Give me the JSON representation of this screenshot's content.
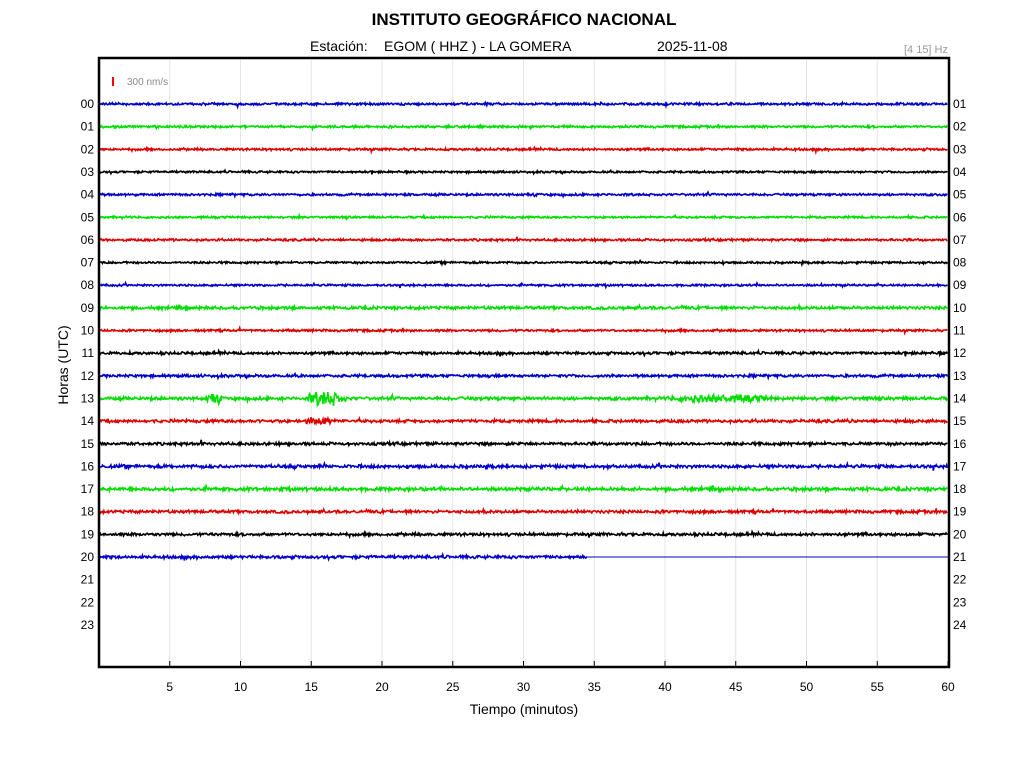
{
  "header": {
    "title": "INSTITUTO GEOGRÁFICO NACIONAL",
    "station_prefix": "Estación:",
    "station": "EGOM ( HHZ ) - LA GOMERA",
    "date": "2025-11-08",
    "filter": "[4 15] Hz"
  },
  "chart_data": {
    "type": "line",
    "xlabel": "Tiempo (minutos)",
    "ylabel": "Horas (UTC)",
    "xlim": [
      0,
      60
    ],
    "x_ticks": [
      5,
      10,
      15,
      20,
      25,
      30,
      35,
      40,
      45,
      50,
      55,
      60
    ],
    "scale_bar": {
      "label": "300 nm/s",
      "color": "#ff0000"
    },
    "left_labels": [
      "00",
      "01",
      "02",
      "03",
      "04",
      "05",
      "06",
      "07",
      "08",
      "09",
      "10",
      "11",
      "12",
      "13",
      "14",
      "15",
      "16",
      "17",
      "18",
      "19",
      "20",
      "21",
      "22",
      "23"
    ],
    "right_labels": [
      "01",
      "02",
      "03",
      "04",
      "05",
      "06",
      "07",
      "08",
      "09",
      "10",
      "11",
      "12",
      "13",
      "14",
      "15",
      "16",
      "17",
      "18",
      "19",
      "20",
      "21",
      "22",
      "23",
      "24"
    ],
    "colors": [
      "#0000cc",
      "#00dd00",
      "#dd0000",
      "#000000"
    ],
    "traces": [
      {
        "hour": "00",
        "color": "#0000cc",
        "end_min": 60,
        "amp": 1.0
      },
      {
        "hour": "01",
        "color": "#00dd00",
        "end_min": 60,
        "amp": 1.0
      },
      {
        "hour": "02",
        "color": "#dd0000",
        "end_min": 60,
        "amp": 1.0
      },
      {
        "hour": "03",
        "color": "#000000",
        "end_min": 60,
        "amp": 0.9
      },
      {
        "hour": "04",
        "color": "#0000cc",
        "end_min": 60,
        "amp": 1.0
      },
      {
        "hour": "05",
        "color": "#00dd00",
        "end_min": 60,
        "amp": 0.9
      },
      {
        "hour": "06",
        "color": "#dd0000",
        "end_min": 60,
        "amp": 1.0
      },
      {
        "hour": "07",
        "color": "#000000",
        "end_min": 60,
        "amp": 0.9
      },
      {
        "hour": "08",
        "color": "#0000cc",
        "end_min": 60,
        "amp": 0.9
      },
      {
        "hour": "09",
        "color": "#00dd00",
        "end_min": 60,
        "amp": 1.3
      },
      {
        "hour": "10",
        "color": "#dd0000",
        "end_min": 60,
        "amp": 1.0
      },
      {
        "hour": "11",
        "color": "#000000",
        "end_min": 60,
        "amp": 1.2
      },
      {
        "hour": "12",
        "color": "#0000cc",
        "end_min": 60,
        "amp": 1.2
      },
      {
        "hour": "13",
        "color": "#00dd00",
        "end_min": 60,
        "amp": 1.4,
        "bursts": [
          [
            7.5,
            2,
            2.5
          ],
          [
            14.5,
            5,
            5
          ],
          [
            40,
            13,
            2
          ]
        ]
      },
      {
        "hour": "14",
        "color": "#dd0000",
        "end_min": 60,
        "amp": 1.3,
        "bursts": [
          [
            14.5,
            3.5,
            3
          ]
        ]
      },
      {
        "hour": "15",
        "color": "#000000",
        "end_min": 60,
        "amp": 1.3
      },
      {
        "hour": "16",
        "color": "#0000cc",
        "end_min": 60,
        "amp": 1.4
      },
      {
        "hour": "17",
        "color": "#00dd00",
        "end_min": 60,
        "amp": 1.5
      },
      {
        "hour": "18",
        "color": "#dd0000",
        "end_min": 60,
        "amp": 1.3
      },
      {
        "hour": "19",
        "color": "#000000",
        "end_min": 60,
        "amp": 1.3
      },
      {
        "hour": "20",
        "color": "#0000cc",
        "end_min": 34.5,
        "amp": 1.3
      }
    ]
  }
}
